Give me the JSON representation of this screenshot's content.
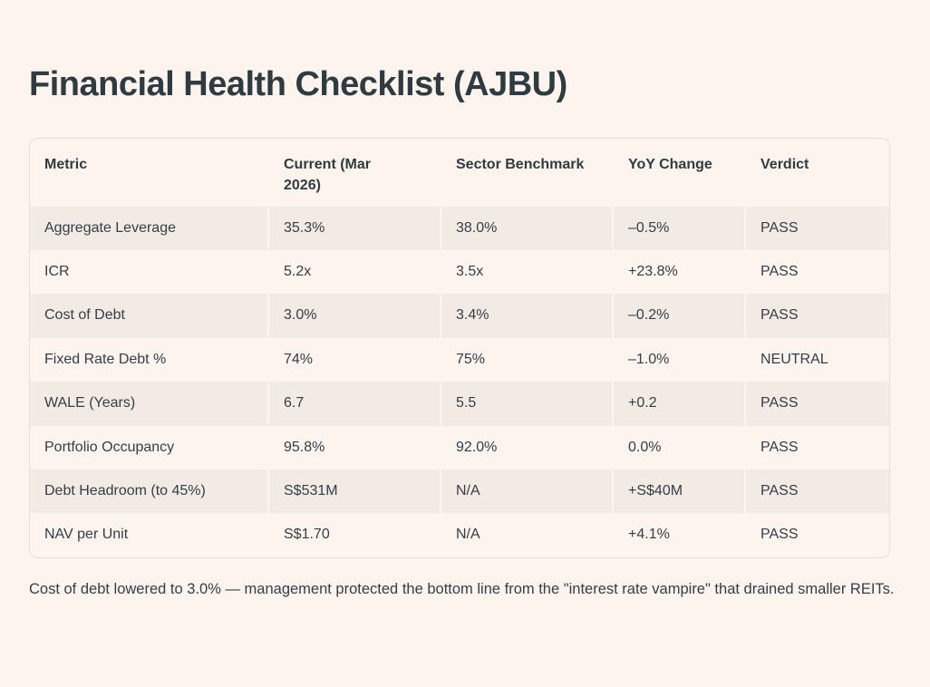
{
  "page": {
    "title": "Financial Health Checklist (AJBU)",
    "footnote": "Cost of debt lowered to 3.0% — management protected the bottom line from the \"interest rate vampire\" that drained smaller REITs."
  },
  "colors": {
    "background": "#FDF4ED",
    "stripe": "#F2EBE3",
    "border": "#E9DED7",
    "heading_text": "#2E3C42",
    "body_text": "#343D49"
  },
  "table": {
    "columns": [
      "Metric",
      "Current (Mar 2026)",
      "Sector Benchmark",
      "YoY Change",
      "Verdict"
    ],
    "cell_names": [
      "cell-metric",
      "cell-current",
      "cell-benchmark",
      "cell-yoy-change",
      "cell-verdict"
    ],
    "rows": [
      [
        "Aggregate Leverage",
        "35.3%",
        "38.0%",
        "–0.5%",
        "PASS"
      ],
      [
        "ICR",
        "5.2x",
        "3.5x",
        "+23.8%",
        "PASS"
      ],
      [
        "Cost of Debt",
        "3.0%",
        "3.4%",
        "–0.2%",
        "PASS"
      ],
      [
        "Fixed Rate Debt %",
        "74%",
        "75%",
        "–1.0%",
        "NEUTRAL"
      ],
      [
        "WALE (Years)",
        "6.7",
        "5.5",
        "+0.2",
        "PASS"
      ],
      [
        "Portfolio Occupancy",
        "95.8%",
        "92.0%",
        "0.0%",
        "PASS"
      ],
      [
        "Debt Headroom (to 45%)",
        "S$531M",
        "N/A",
        "+S$40M",
        "PASS"
      ],
      [
        "NAV per Unit",
        "S$1.70",
        "N/A",
        "+4.1%",
        "PASS"
      ]
    ]
  }
}
